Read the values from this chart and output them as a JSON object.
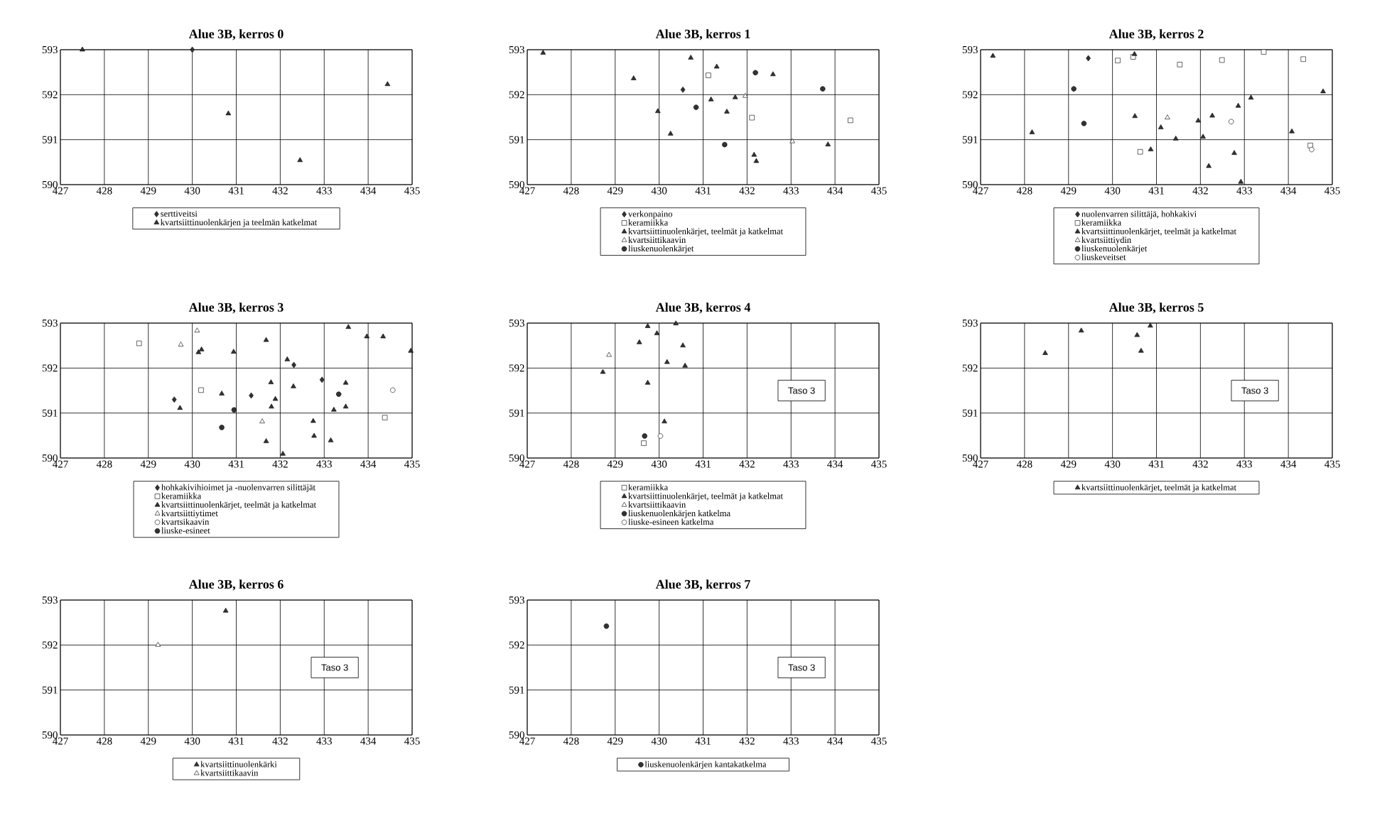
{
  "chart_data": [
    {
      "type": "scatter",
      "title": "Alue 3B, kerros 0",
      "xlim": [
        427,
        435
      ],
      "ylim": [
        590,
        593
      ],
      "xticks": [
        427,
        428,
        429,
        430,
        431,
        432,
        433,
        434,
        435
      ],
      "yticks": [
        590,
        591,
        592,
        593
      ],
      "grid": true,
      "legend": "bottom",
      "series": [
        {
          "name": "serttiveitsi",
          "marker": "diamond",
          "color": "#333333",
          "x": [
            430.0
          ],
          "values": [
            593.0
          ]
        },
        {
          "name": "kvartsiittinuolenkärjen ja teelmän katkelmat",
          "marker": "triangle",
          "color": "#333333",
          "x": [
            427.5,
            430.82,
            432.45,
            434.44
          ],
          "values": [
            593.0,
            591.58,
            590.54,
            592.23
          ]
        }
      ]
    },
    {
      "type": "scatter",
      "title": "Alue 3B, kerros 1",
      "xlim": [
        427,
        435
      ],
      "ylim": [
        590,
        593
      ],
      "xticks": [
        427,
        428,
        429,
        430,
        431,
        432,
        433,
        434,
        435
      ],
      "yticks": [
        590,
        591,
        592,
        593
      ],
      "grid": true,
      "legend": "bottom",
      "series": [
        {
          "name": "verkonpaino",
          "marker": "diamond",
          "color": "#333333",
          "x": [
            430.54
          ],
          "values": [
            592.11
          ]
        },
        {
          "name": "keramiikka",
          "marker": "square",
          "color": "#ffffff",
          "x": [
            431.12,
            432.11,
            434.35
          ],
          "values": [
            592.43,
            591.49,
            591.43
          ]
        },
        {
          "name": "kvartsiittinuolenkärjet, teelmät ja katkelmat",
          "marker": "triangle",
          "color": "#333333",
          "x": [
            427.36,
            429.42,
            430.72,
            431.31,
            432.59,
            429.97,
            430.26,
            431.18,
            431.54,
            431.73,
            432.16,
            432.21,
            433.84
          ],
          "values": [
            592.93,
            592.36,
            592.82,
            592.62,
            592.45,
            591.63,
            591.13,
            591.89,
            591.62,
            591.94,
            590.66,
            590.52,
            590.89
          ]
        },
        {
          "name": "kvartsiittikaavin",
          "marker": "triangle",
          "color": "#ffffff",
          "x": [
            431.96,
            433.03
          ],
          "values": [
            591.97,
            590.96
          ]
        },
        {
          "name": "liuskenuolenkärjet",
          "marker": "circle",
          "color": "#333333",
          "x": [
            432.19,
            433.72,
            430.84,
            431.49
          ],
          "values": [
            592.49,
            592.13,
            591.72,
            590.89
          ]
        }
      ]
    },
    {
      "type": "scatter",
      "title": "Alue 3B, kerros 2",
      "xlim": [
        427,
        435
      ],
      "ylim": [
        590,
        593
      ],
      "xticks": [
        427,
        428,
        429,
        430,
        431,
        432,
        433,
        434,
        435
      ],
      "yticks": [
        590,
        591,
        592,
        593
      ],
      "grid": true,
      "legend": "bottom",
      "series": [
        {
          "name": "nuolenvarren silittäjä, hohkakivi",
          "marker": "diamond",
          "color": "#333333",
          "x": [
            429.45
          ],
          "values": [
            592.81
          ]
        },
        {
          "name": "keramiikka",
          "marker": "square",
          "color": "#ffffff",
          "x": [
            430.12,
            430.47,
            431.53,
            432.49,
            433.44,
            434.34,
            430.63,
            434.5
          ],
          "values": [
            592.76,
            592.84,
            592.67,
            592.77,
            592.95,
            592.79,
            590.73,
            590.87
          ]
        },
        {
          "name": "kvartsiittinuolenkärjet, teelmät ja katkelmat",
          "marker": "triangle",
          "color": "#333333",
          "x": [
            427.28,
            428.17,
            430.5,
            430.51,
            431.1,
            431.44,
            430.87,
            431.95,
            432.27,
            432.06,
            432.19,
            432.77,
            432.86,
            433.15,
            432.92,
            434.08,
            434.79
          ],
          "values": [
            592.86,
            591.16,
            592.9,
            591.52,
            591.27,
            591.02,
            590.78,
            591.42,
            591.53,
            591.06,
            590.41,
            590.7,
            591.75,
            591.93,
            590.06,
            591.18,
            592.07
          ]
        },
        {
          "name": "kvartsiittiydin",
          "marker": "triangle",
          "color": "#ffffff",
          "x": [
            431.25
          ],
          "values": [
            591.49
          ]
        },
        {
          "name": "liuskenuolenkärjet",
          "marker": "circle",
          "color": "#333333",
          "x": [
            429.12,
            429.35
          ],
          "values": [
            592.13,
            591.36
          ]
        },
        {
          "name": "liuskeveitset",
          "marker": "circle",
          "color": "#ffffff",
          "x": [
            432.7,
            434.53
          ],
          "values": [
            591.4,
            590.78
          ]
        }
      ]
    },
    {
      "type": "scatter",
      "title": "Alue 3B, kerros 3",
      "xlim": [
        427,
        435
      ],
      "ylim": [
        590,
        593
      ],
      "xticks": [
        427,
        428,
        429,
        430,
        431,
        432,
        433,
        434,
        435
      ],
      "yticks": [
        590,
        591,
        592,
        593
      ],
      "grid": true,
      "legend": "bottom",
      "series": [
        {
          "name": "hohkakivihioimet ja -nuolenvarren silittäjät",
          "marker": "diamond",
          "color": "#333333",
          "x": [
            429.59,
            431.34,
            432.31,
            432.95
          ],
          "values": [
            591.3,
            591.39,
            592.07,
            591.74
          ]
        },
        {
          "name": "keramiikka",
          "marker": "square",
          "color": "#ffffff",
          "x": [
            428.79,
            430.2,
            434.38
          ],
          "values": [
            592.55,
            591.51,
            590.9
          ]
        },
        {
          "name": "kvartsiittinuolenkärjet, teelmät ja katkelmat",
          "marker": "triangle",
          "color": "#333333",
          "x": [
            429.72,
            430.14,
            430.21,
            430.94,
            430.67,
            431.68,
            431.79,
            431.8,
            431.89,
            432.16,
            432.3,
            431.68,
            432.06,
            432.75,
            432.77,
            433.15,
            433.22,
            433.49,
            433.49,
            433.55,
            433.97,
            434.34,
            434.97
          ],
          "values": [
            591.11,
            592.35,
            592.41,
            592.36,
            591.43,
            592.62,
            591.68,
            591.14,
            591.31,
            592.19,
            591.59,
            590.37,
            590.09,
            590.82,
            590.49,
            590.39,
            591.07,
            591.67,
            591.14,
            592.91,
            592.7,
            592.7,
            592.38
          ]
        },
        {
          "name": "kvartsiittiytimet",
          "marker": "triangle",
          "color": "#ffffff",
          "x": [
            430.11,
            429.74,
            431.59
          ],
          "values": [
            592.83,
            592.52,
            590.81
          ]
        },
        {
          "name": "kvartsikaavin",
          "marker": "circle",
          "color": "#ffffff",
          "x": [
            434.56
          ],
          "values": [
            591.51
          ]
        },
        {
          "name": "liuske-esineet",
          "marker": "circle",
          "color": "#333333",
          "x": [
            430.95,
            430.67,
            433.33
          ],
          "values": [
            591.07,
            590.68,
            591.42
          ]
        }
      ]
    },
    {
      "type": "scatter",
      "title": "Alue 3B, kerros 4",
      "xlim": [
        427,
        435
      ],
      "ylim": [
        590,
        593
      ],
      "xticks": [
        427,
        428,
        429,
        430,
        431,
        432,
        433,
        434,
        435
      ],
      "yticks": [
        590,
        591,
        592,
        593
      ],
      "grid": true,
      "legend": "bottom",
      "annotations": [
        "Taso 3"
      ],
      "series": [
        {
          "name": "keramiikka",
          "marker": "square",
          "color": "#ffffff",
          "x": [
            429.65
          ],
          "values": [
            590.33
          ]
        },
        {
          "name": "kvartsiittinuolenkärjet, teelmät ja katkelmat",
          "marker": "triangle",
          "color": "#333333",
          "x": [
            428.72,
            429.74,
            429.55,
            429.95,
            430.38,
            430.54,
            430.18,
            430.59,
            429.74,
            430.12
          ],
          "values": [
            591.91,
            592.93,
            592.57,
            592.77,
            592.99,
            592.5,
            592.13,
            592.05,
            591.67,
            590.81
          ]
        },
        {
          "name": "kvartsiittikaavin",
          "marker": "triangle",
          "color": "#ffffff",
          "x": [
            428.86
          ],
          "values": [
            592.29
          ]
        },
        {
          "name": "liuskenuolenkärjen katkelma",
          "marker": "circle",
          "color": "#333333",
          "x": [
            429.67
          ],
          "values": [
            590.49
          ]
        },
        {
          "name": "liuske-esineen katkelma",
          "marker": "circle",
          "color": "#ffffff",
          "x": [
            430.03
          ],
          "values": [
            590.49
          ]
        }
      ]
    },
    {
      "type": "scatter",
      "title": "Alue 3B, kerros 5",
      "xlim": [
        427,
        435
      ],
      "ylim": [
        590,
        593
      ],
      "xticks": [
        427,
        428,
        429,
        430,
        431,
        432,
        433,
        434,
        435
      ],
      "yticks": [
        590,
        591,
        592,
        593
      ],
      "grid": true,
      "legend": "bottom",
      "annotations": [
        "Taso 3"
      ],
      "series": [
        {
          "name": "kvartsiittinuolenkärjet, teelmät ja katkelmat",
          "marker": "triangle",
          "color": "#333333",
          "x": [
            428.47,
            429.29,
            430.56,
            430.65,
            430.86
          ],
          "values": [
            592.33,
            592.83,
            592.73,
            592.38,
            592.94
          ]
        }
      ]
    },
    {
      "type": "scatter",
      "title": "Alue 3B, kerros 6",
      "xlim": [
        427,
        435
      ],
      "ylim": [
        590,
        593
      ],
      "xticks": [
        427,
        428,
        429,
        430,
        431,
        432,
        433,
        434,
        435
      ],
      "yticks": [
        590,
        591,
        592,
        593
      ],
      "grid": true,
      "legend": "bottom",
      "annotations": [
        "Taso 3"
      ],
      "series": [
        {
          "name": "kvartsiittinuolenkärki",
          "marker": "triangle",
          "color": "#333333",
          "x": [
            430.76
          ],
          "values": [
            592.76
          ]
        },
        {
          "name": "kvartsiittikaavin",
          "marker": "triangle",
          "color": "#ffffff",
          "x": [
            429.22
          ],
          "values": [
            592.0
          ]
        }
      ]
    },
    {
      "type": "scatter",
      "title": "Alue 3B, kerros 7",
      "xlim": [
        427,
        435
      ],
      "ylim": [
        590,
        593
      ],
      "xticks": [
        427,
        428,
        429,
        430,
        431,
        432,
        433,
        434,
        435
      ],
      "yticks": [
        590,
        591,
        592,
        593
      ],
      "grid": true,
      "legend": "bottom",
      "annotations": [
        "Taso 3"
      ],
      "series": [
        {
          "name": "liuskenuolenkärjen kantakatkelma",
          "marker": "circle",
          "color": "#333333",
          "x": [
            428.8
          ],
          "values": [
            592.42
          ]
        }
      ]
    }
  ]
}
